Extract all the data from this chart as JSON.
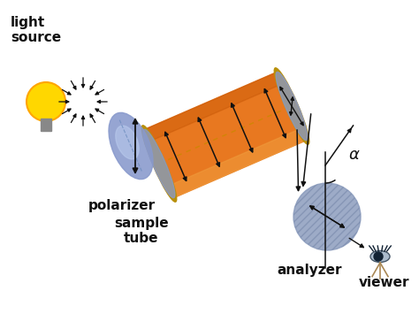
{
  "bg_color": "#ffffff",
  "labels": {
    "light_source": "light\nsource",
    "polarizer": "polarizer",
    "sample_tube": "sample\ntube",
    "analyzer": "analyzer",
    "viewer": "viewer",
    "alpha": "α"
  },
  "colors": {
    "tube_orange": "#E87820",
    "tube_highlight": "#F0A040",
    "tube_shadow": "#C05000",
    "tube_gold": "#B8900A",
    "polarizer_blue": "#8899CC",
    "polarizer_light": "#BBCCEE",
    "analyzer_blue": "#8899BB",
    "analyzer_dark": "#6677AA",
    "bulb_yellow": "#FFD700",
    "bulb_amber": "#FFA500",
    "text_color": "#111111",
    "arrow_color": "#111111",
    "starburst_color": "#111111"
  },
  "figsize": [
    4.74,
    3.55
  ],
  "dpi": 100
}
